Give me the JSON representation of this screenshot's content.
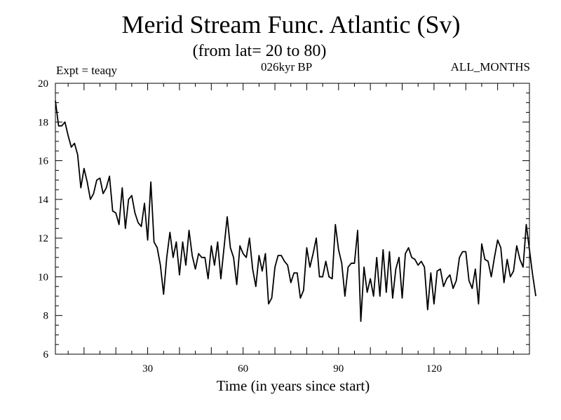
{
  "chart_data": {
    "type": "line",
    "title": "Merid Stream Func. Atlantic (Sv)",
    "subtitle": "(from lat= 20 to 80)",
    "experiment": "Expt = teaqy",
    "period": "026kyr BP",
    "months": "ALL_MONTHS",
    "xlabel": "Time (in years since start)",
    "ylabel": "",
    "xlim": [
      1,
      150
    ],
    "ylim": [
      6,
      20
    ],
    "xticks": [
      30,
      60,
      90,
      120
    ],
    "yticks": [
      6,
      8,
      10,
      12,
      14,
      16,
      18,
      20
    ],
    "grid": false,
    "series": [
      {
        "name": "Merid Stream Func.",
        "x_start": 1,
        "x_step": 1,
        "values": [
          19.1,
          17.8,
          17.8,
          18.0,
          17.3,
          16.7,
          16.9,
          16.3,
          14.6,
          15.6,
          14.9,
          14.0,
          14.3,
          15.0,
          15.1,
          14.3,
          14.6,
          15.2,
          13.4,
          13.3,
          12.7,
          14.6,
          12.5,
          14.0,
          14.2,
          13.3,
          12.8,
          12.6,
          13.8,
          11.9,
          14.9,
          11.8,
          11.5,
          10.6,
          9.1,
          11.0,
          12.3,
          11.0,
          11.8,
          10.1,
          11.8,
          10.6,
          12.4,
          11.1,
          10.4,
          11.2,
          11.0,
          11.0,
          9.9,
          11.6,
          10.6,
          11.8,
          9.9,
          11.5,
          13.1,
          11.5,
          11.0,
          9.6,
          11.6,
          11.2,
          11.0,
          12.0,
          10.4,
          9.5,
          11.1,
          10.3,
          11.2,
          8.6,
          8.9,
          10.5,
          11.1,
          11.1,
          10.8,
          10.6,
          9.7,
          10.2,
          10.2,
          8.9,
          9.3,
          11.5,
          10.5,
          11.2,
          12.0,
          10.0,
          10.0,
          10.8,
          10.0,
          9.9,
          12.7,
          11.4,
          10.7,
          9.0,
          10.5,
          10.7,
          10.7,
          12.4,
          7.7,
          10.5,
          9.2,
          9.9,
          9.0,
          11.0,
          9.0,
          11.4,
          9.2,
          11.3,
          8.9,
          10.4,
          11.0,
          8.9,
          11.2,
          11.5,
          11.0,
          10.9,
          10.6,
          10.8,
          10.5,
          8.3,
          10.2,
          8.6,
          10.3,
          10.4,
          9.5,
          9.9,
          10.1,
          9.4,
          9.8,
          11.0,
          11.3,
          11.3,
          9.8,
          9.4,
          10.4,
          8.6,
          11.7,
          10.9,
          10.8,
          10.0,
          11.0,
          11.9,
          11.5,
          9.7,
          10.9,
          10.0,
          10.3,
          11.6,
          10.9,
          10.5,
          12.7,
          11.4,
          10.1,
          9.0
        ]
      }
    ]
  }
}
